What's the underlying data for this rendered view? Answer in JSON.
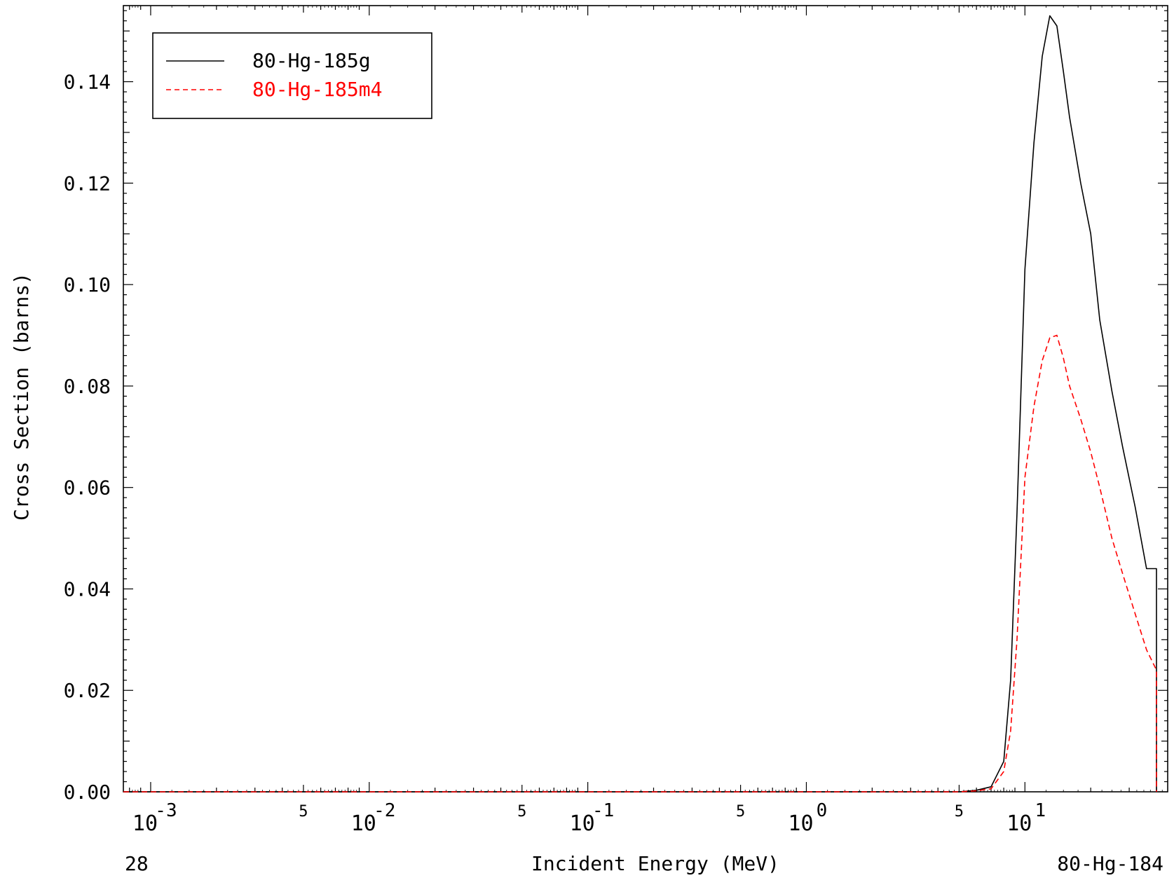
{
  "chart_data": {
    "type": "line",
    "xscale": "log",
    "xlabel": "Incident Energy (MeV)",
    "ylabel": "Cross Section (barns)",
    "xlim": [
      0.00075,
      45
    ],
    "ylim": [
      0,
      0.155
    ],
    "yticks": [
      "0.00",
      "0.02",
      "0.04",
      "0.06",
      "0.08",
      "0.10",
      "0.12",
      "0.14"
    ],
    "xticks_major": [
      {
        "base": "10",
        "exp": "-3",
        "value": 0.001
      },
      {
        "base": "10",
        "exp": "-2",
        "value": 0.01
      },
      {
        "base": "10",
        "exp": "-1",
        "value": 0.1
      },
      {
        "base": "10",
        "exp": "0",
        "value": 1
      },
      {
        "base": "10",
        "exp": "1",
        "value": 10
      }
    ],
    "xticks_minor_labels": [
      {
        "label": "5",
        "value": 0.005
      },
      {
        "label": "5",
        "value": 0.05
      },
      {
        "label": "5",
        "value": 0.5
      },
      {
        "label": "5",
        "value": 5
      }
    ],
    "legend_position": "top-left",
    "footer_left": "28",
    "footer_right": "80-Hg-184",
    "series": [
      {
        "name": "80-Hg-185g",
        "color": "#000000",
        "style": "solid",
        "x": [
          0.00075,
          5.0,
          6.0,
          7.0,
          8.0,
          8.6,
          9.2,
          10.0,
          11.0,
          12.0,
          13.0,
          14.0,
          15.0,
          16.0,
          18.0,
          20.0,
          22.0,
          25.0,
          28.0,
          32.0,
          36.0,
          40.0,
          40.0
        ],
        "y": [
          0.0,
          0.0,
          0.0003,
          0.001,
          0.006,
          0.022,
          0.055,
          0.103,
          0.128,
          0.145,
          0.153,
          0.151,
          0.142,
          0.133,
          0.12,
          0.11,
          0.093,
          0.079,
          0.068,
          0.056,
          0.044,
          0.044,
          0.0
        ],
        "series_draw": "solid"
      },
      {
        "name": "80-Hg-185m4",
        "color": "#ff0000",
        "style": "dashed",
        "x": [
          0.00075,
          5.0,
          6.0,
          7.0,
          8.0,
          8.6,
          9.2,
          10.0,
          11.0,
          12.0,
          13.0,
          14.0,
          15.0,
          16.0,
          18.0,
          20.0,
          22.0,
          25.0,
          28.0,
          32.0,
          36.0,
          40.0,
          40.0
        ],
        "y": [
          0.0,
          0.0,
          0.0002,
          0.0006,
          0.004,
          0.012,
          0.03,
          0.062,
          0.076,
          0.085,
          0.0895,
          0.09,
          0.0855,
          0.08,
          0.0735,
          0.067,
          0.06,
          0.05,
          0.043,
          0.035,
          0.028,
          0.024,
          0.0
        ]
      }
    ]
  },
  "colors": {
    "axis": "#000000",
    "background": "#ffffff",
    "series1": "#000000",
    "series2": "#ff0000"
  }
}
